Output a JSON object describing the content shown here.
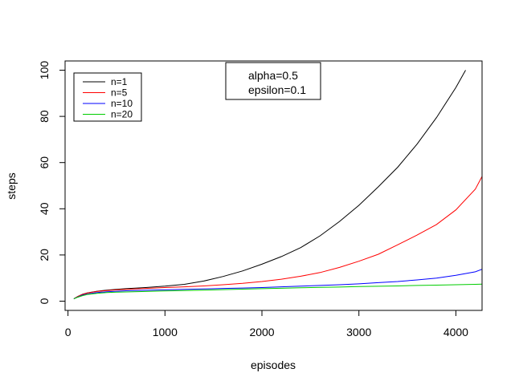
{
  "chart_data": {
    "type": "line",
    "xlabel": "episodes",
    "ylabel": "steps",
    "xlim": [
      -30,
      4270
    ],
    "ylim": [
      -4,
      104
    ],
    "x_ticks": [
      0,
      1000,
      2000,
      3000,
      4000
    ],
    "y_ticks": [
      0,
      20,
      40,
      60,
      80,
      100
    ],
    "annotation": [
      "alpha=0.5",
      "epsilon=0.1"
    ],
    "legend_position": "top-left",
    "series": [
      {
        "name": "n=1",
        "color": "#000000",
        "x": [
          60,
          100,
          150,
          200,
          300,
          400,
          500,
          600,
          800,
          1000,
          1200,
          1400,
          1600,
          1800,
          2000,
          2200,
          2400,
          2600,
          2800,
          3000,
          3200,
          3400,
          3600,
          3800,
          4000,
          4100
        ],
        "y": [
          1.0,
          2.0,
          3.0,
          3.6,
          4.3,
          4.8,
          5.1,
          5.4,
          5.9,
          6.5,
          7.3,
          8.7,
          10.7,
          13.1,
          16.0,
          19.3,
          23.2,
          28.3,
          34.5,
          41.5,
          49.5,
          58.0,
          68.0,
          79.5,
          92.5,
          100.0
        ]
      },
      {
        "name": "n=5",
        "color": "#ff0000",
        "x": [
          60,
          100,
          150,
          200,
          300,
          400,
          500,
          600,
          800,
          1000,
          1200,
          1400,
          1600,
          1800,
          2000,
          2200,
          2400,
          2600,
          2800,
          3000,
          3200,
          3400,
          3600,
          3800,
          4000,
          4200,
          4270
        ],
        "y": [
          1.0,
          2.0,
          2.9,
          3.5,
          4.2,
          4.6,
          4.9,
          5.1,
          5.5,
          5.9,
          6.2,
          6.6,
          7.1,
          7.7,
          8.5,
          9.5,
          10.8,
          12.4,
          14.6,
          17.3,
          20.3,
          24.4,
          28.6,
          33.2,
          39.5,
          48.5,
          54.0
        ]
      },
      {
        "name": "n=10",
        "color": "#0000ff",
        "x": [
          60,
          100,
          150,
          200,
          300,
          400,
          500,
          600,
          800,
          1000,
          1200,
          1400,
          1600,
          1800,
          2000,
          2200,
          2400,
          2600,
          2800,
          3000,
          3200,
          3400,
          3600,
          3800,
          4000,
          4200,
          4270
        ],
        "y": [
          1.0,
          1.8,
          2.6,
          3.1,
          3.7,
          4.1,
          4.3,
          4.5,
          4.7,
          4.9,
          5.1,
          5.3,
          5.5,
          5.7,
          5.9,
          6.2,
          6.5,
          6.8,
          7.1,
          7.5,
          8.0,
          8.5,
          9.2,
          10.0,
          11.2,
          12.7,
          13.8
        ]
      },
      {
        "name": "n=20",
        "color": "#00cc00",
        "x": [
          60,
          100,
          150,
          200,
          300,
          400,
          500,
          600,
          800,
          1000,
          1200,
          1400,
          1600,
          1800,
          2000,
          2200,
          2400,
          2600,
          2800,
          3000,
          3200,
          3400,
          3600,
          3800,
          4000,
          4200,
          4270
        ],
        "y": [
          1.0,
          1.7,
          2.4,
          2.9,
          3.4,
          3.7,
          3.9,
          4.0,
          4.2,
          4.4,
          4.6,
          4.8,
          5.0,
          5.2,
          5.4,
          5.6,
          5.8,
          5.95,
          6.1,
          6.3,
          6.45,
          6.6,
          6.8,
          6.95,
          7.1,
          7.3,
          7.4
        ]
      }
    ]
  }
}
